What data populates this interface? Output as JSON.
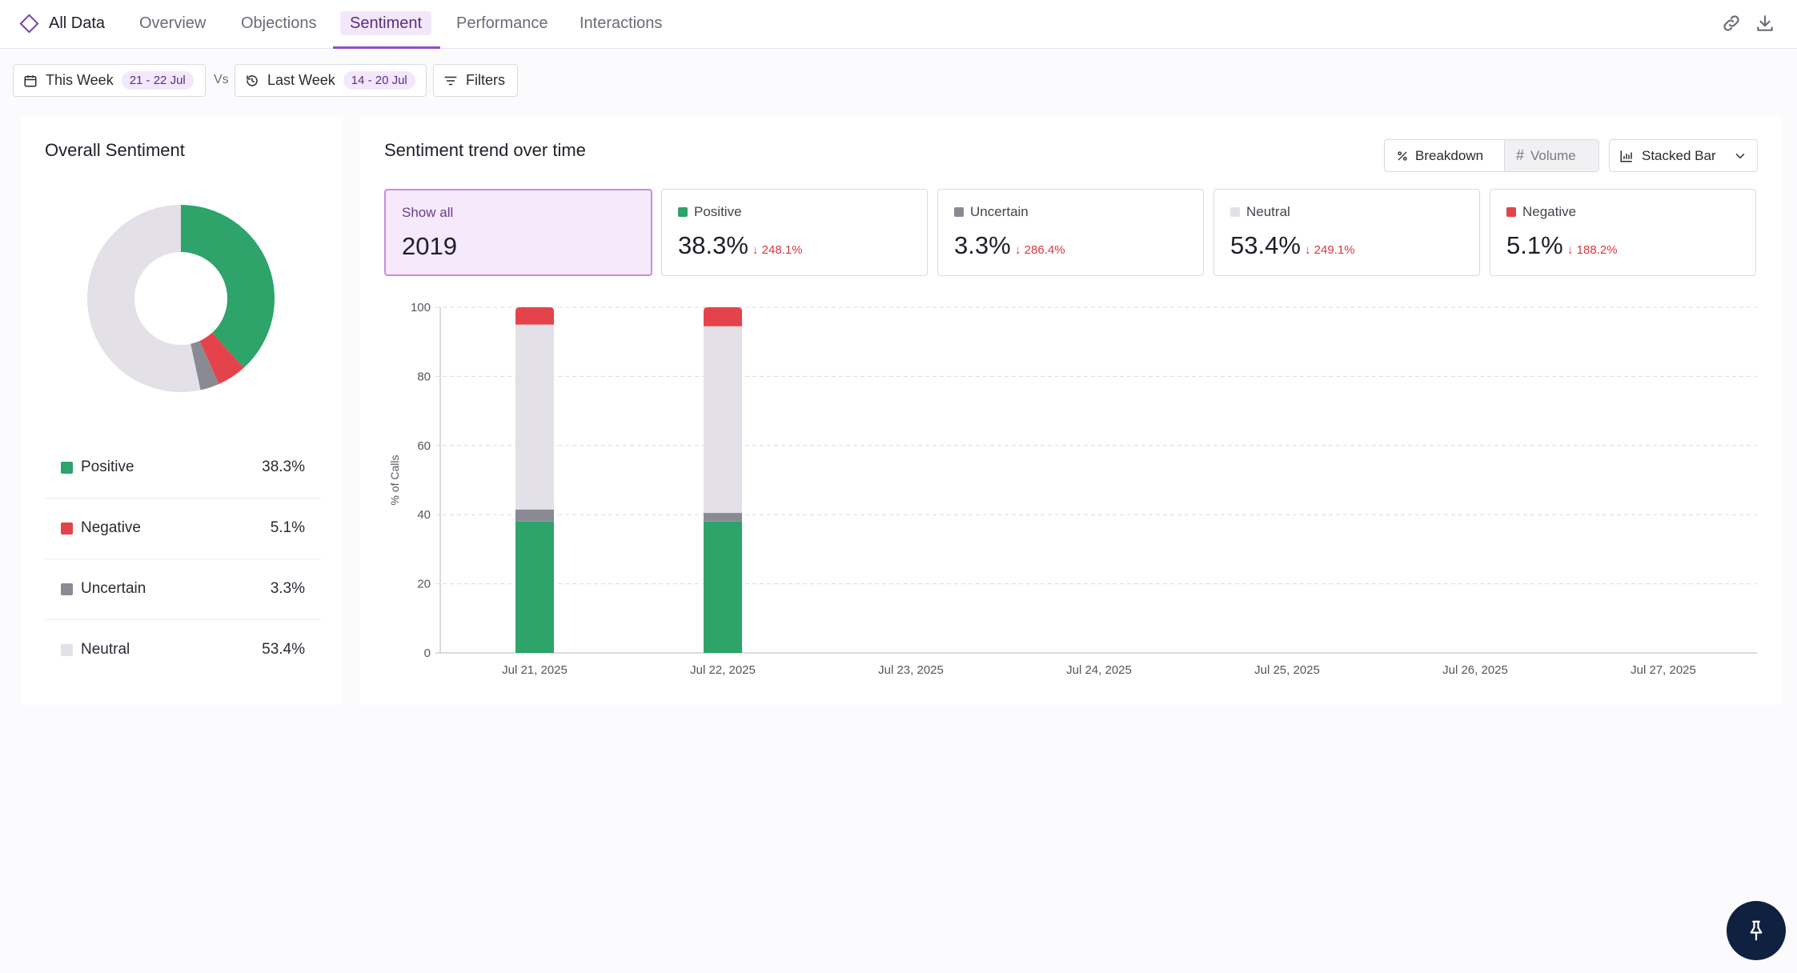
{
  "nav": {
    "brand_label": "All Data",
    "tabs": [
      {
        "label": "Overview"
      },
      {
        "label": "Objections"
      },
      {
        "label": "Sentiment"
      },
      {
        "label": "Performance"
      },
      {
        "label": "Interactions"
      }
    ],
    "icons": {
      "brand": "diamond-icon",
      "link": "link-icon",
      "download": "download-icon"
    }
  },
  "filters": {
    "current_label": "This Week",
    "current_range": "21 - 22 Jul",
    "vs_label": "Vs",
    "previous_label": "Last Week",
    "previous_range": "14 - 20 Jul",
    "filters_label": "Filters"
  },
  "overall": {
    "title": "Overall Sentiment",
    "items": [
      {
        "label": "Positive",
        "value": "38.3%",
        "percent": 38.3,
        "color": "#2ea36a"
      },
      {
        "label": "Negative",
        "value": "5.1%",
        "percent": 5.1,
        "color": "#e5434b"
      },
      {
        "label": "Uncertain",
        "value": "3.3%",
        "percent": 3.3,
        "color": "#8a8a94"
      },
      {
        "label": "Neutral",
        "value": "53.4%",
        "percent": 53.4,
        "color": "#e3e0e7"
      }
    ]
  },
  "trend": {
    "title": "Sentiment trend over time",
    "toggle": {
      "breakdown_label": "Breakdown",
      "volume_label": "Volume"
    },
    "chart_type_label": "Stacked Bar",
    "stats": {
      "show_all_label": "Show all",
      "show_all_value": "2019",
      "items": [
        {
          "label": "Positive",
          "value": "38.3%",
          "delta": "248.1%",
          "color": "#2ea36a"
        },
        {
          "label": "Uncertain",
          "value": "3.3%",
          "delta": "286.4%",
          "color": "#8a8a94"
        },
        {
          "label": "Neutral",
          "value": "53.4%",
          "delta": "249.1%",
          "color": "#e3e0e7"
        },
        {
          "label": "Negative",
          "value": "5.1%",
          "delta": "188.2%",
          "color": "#e5434b"
        }
      ]
    }
  },
  "chart_data": {
    "type": "bar",
    "stacked": true,
    "categories": [
      "Jul 21, 2025",
      "Jul 22, 2025",
      "Jul 23, 2025",
      "Jul 24, 2025",
      "Jul 25, 2025",
      "Jul 26, 2025",
      "Jul 27, 2025"
    ],
    "series": [
      {
        "name": "Positive",
        "color": "#2ea36a",
        "values": [
          38,
          38,
          null,
          null,
          null,
          null,
          null
        ]
      },
      {
        "name": "Uncertain",
        "color": "#8a8a94",
        "values": [
          3.5,
          2.5,
          null,
          null,
          null,
          null,
          null
        ]
      },
      {
        "name": "Neutral",
        "color": "#e3e0e7",
        "values": [
          53.5,
          54,
          null,
          null,
          null,
          null,
          null
        ]
      },
      {
        "name": "Negative",
        "color": "#e5434b",
        "values": [
          5,
          5.5,
          null,
          null,
          null,
          null,
          null
        ]
      }
    ],
    "ylabel": "% of Calls",
    "ylim": [
      0,
      100
    ],
    "yticks": [
      0,
      20,
      40,
      60,
      80,
      100
    ],
    "grid": true
  },
  "fab": {
    "icon": "pin-icon"
  }
}
